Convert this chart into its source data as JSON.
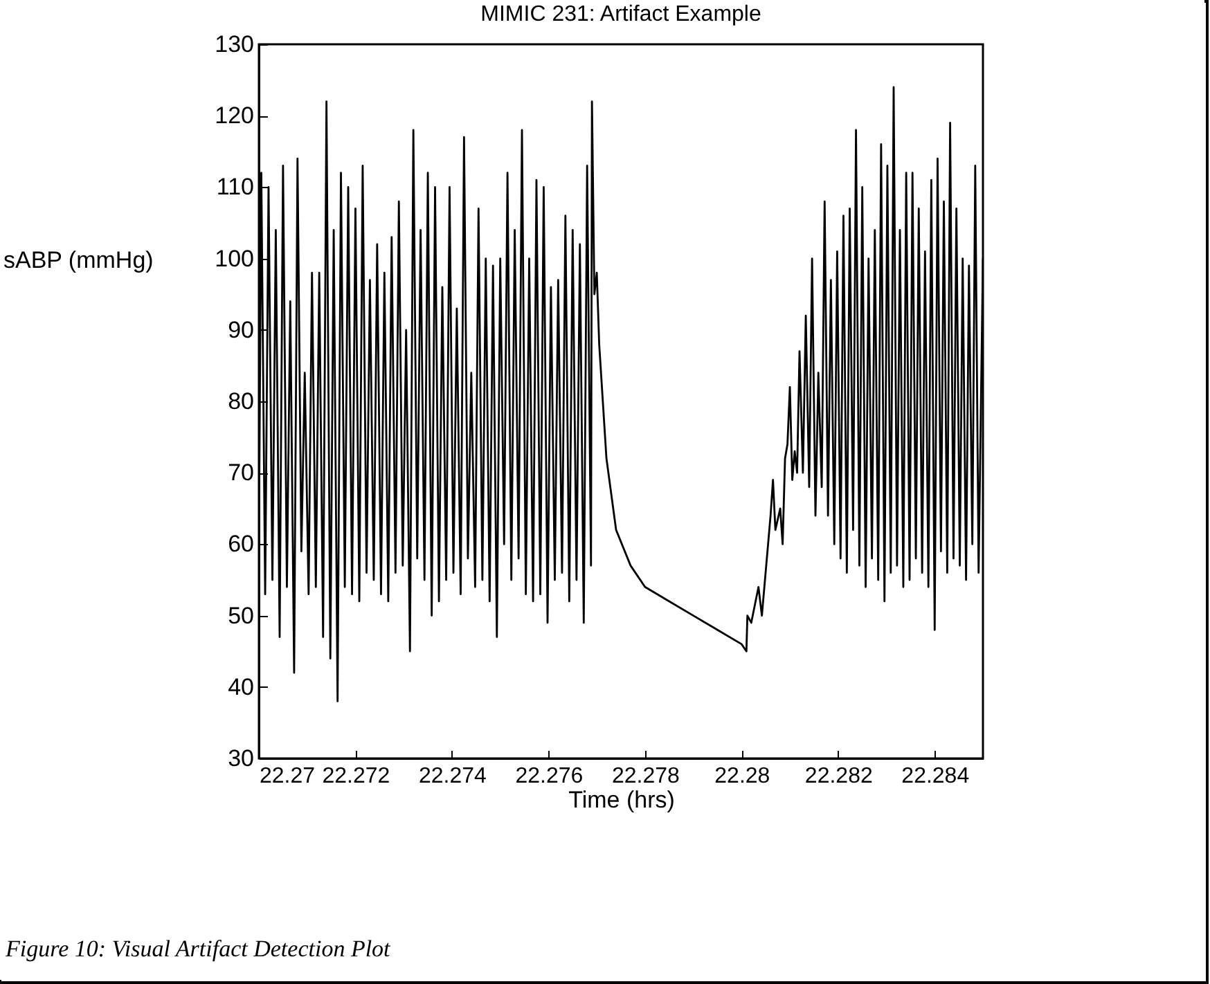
{
  "chart_data": {
    "type": "line",
    "title": "MIMIC 231: Artifact Example",
    "xlabel": "Time (hrs)",
    "ylabel": "sABP (mmHg)",
    "annotations": [
      "Figure 10:  Visual Artifact Detection Plot"
    ],
    "xlim": [
      22.27,
      22.285
    ],
    "xticks": [
      22.27,
      22.272,
      22.274,
      22.276,
      22.278,
      22.28,
      22.282,
      22.284
    ],
    "ylim": [
      30,
      130
    ],
    "yticks": [
      30,
      40,
      50,
      60,
      70,
      80,
      90,
      100,
      110,
      120,
      130
    ],
    "grid": false,
    "series": [
      {
        "color": "#000000",
        "x": [
          22.27,
          22.27005,
          22.27013,
          22.2702,
          22.27028,
          22.27035,
          22.27043,
          22.2705,
          22.27058,
          22.27065,
          22.27073,
          22.2708,
          22.27088,
          22.27095,
          22.27103,
          22.2711,
          22.27118,
          22.27125,
          22.27133,
          22.2714,
          22.27148,
          22.27155,
          22.27163,
          22.2717,
          22.27178,
          22.27185,
          22.27193,
          22.272,
          22.27208,
          22.27215,
          22.27223,
          22.2723,
          22.27238,
          22.27245,
          22.27253,
          22.2726,
          22.27268,
          22.27275,
          22.27283,
          22.2729,
          22.27298,
          22.27305,
          22.27313,
          22.2732,
          22.27328,
          22.27335,
          22.27343,
          22.2735,
          22.27358,
          22.27365,
          22.27373,
          22.2738,
          22.27388,
          22.27395,
          22.27403,
          22.2741,
          22.27418,
          22.27425,
          22.27433,
          22.2744,
          22.27448,
          22.27455,
          22.27463,
          22.2747,
          22.27478,
          22.27485,
          22.27493,
          22.275,
          22.27508,
          22.27515,
          22.27523,
          22.2753,
          22.27538,
          22.27545,
          22.27553,
          22.2756,
          22.27568,
          22.27575,
          22.27583,
          22.2759,
          22.27598,
          22.27605,
          22.27613,
          22.2762,
          22.27628,
          22.27635,
          22.27643,
          22.2765,
          22.27658,
          22.27665,
          22.27673,
          22.2768,
          22.27688,
          22.2769,
          22.27695,
          22.277,
          22.27705,
          22.2772,
          22.2774,
          22.2777,
          22.278,
          22.2785,
          22.279,
          22.2795,
          22.28,
          22.2801,
          22.28012,
          22.2802,
          22.28035,
          22.28042,
          22.2806,
          22.28065,
          22.2807,
          22.2808,
          22.28085,
          22.2809,
          22.28095,
          22.281,
          22.28105,
          22.2811,
          22.28115,
          22.2812,
          22.28127,
          22.28133,
          22.2814,
          22.28146,
          22.28153,
          22.28159,
          22.28166,
          22.28172,
          22.28179,
          22.28185,
          22.28192,
          22.28198,
          22.28205,
          22.28211,
          22.28218,
          22.28224,
          22.28231,
          22.28237,
          22.28244,
          22.2825,
          22.28257,
          22.28263,
          22.2827,
          22.28276,
          22.28283,
          22.28289,
          22.28296,
          22.28302,
          22.28309,
          22.28315,
          22.28322,
          22.28328,
          22.28335,
          22.28341,
          22.28348,
          22.28354,
          22.28361,
          22.28367,
          22.28374,
          22.2838,
          22.28387,
          22.28393,
          22.284,
          22.28406,
          22.28413,
          22.28419,
          22.28426,
          22.28432,
          22.28439,
          22.28445,
          22.28452,
          22.28458,
          22.28465,
          22.28471,
          22.28478,
          22.28484,
          22.28491,
          22.285
        ],
        "values": [
          60,
          112,
          53,
          110,
          55,
          104,
          47,
          113,
          54,
          94,
          42,
          114,
          59,
          84,
          53,
          98,
          54,
          98,
          47,
          122,
          44,
          104,
          38,
          112,
          54,
          110,
          53,
          107,
          52,
          113,
          56,
          97,
          55,
          102,
          53,
          98,
          52,
          103,
          56,
          108,
          57,
          90,
          45,
          118,
          58,
          104,
          55,
          112,
          50,
          110,
          52,
          96,
          55,
          110,
          56,
          93,
          53,
          117,
          58,
          84,
          54,
          107,
          55,
          100,
          52,
          99,
          47,
          100,
          60,
          112,
          55,
          104,
          58,
          118,
          53,
          100,
          52,
          111,
          53,
          110,
          49,
          96,
          55,
          97,
          56,
          106,
          52,
          104,
          55,
          102,
          49,
          113,
          57,
          122,
          95,
          98,
          88,
          72,
          62,
          57,
          54,
          52,
          50,
          48,
          46,
          45,
          50,
          49,
          54,
          50,
          64,
          69,
          62,
          65,
          60,
          72,
          74,
          82,
          69,
          73,
          70,
          87,
          70,
          92,
          68,
          100,
          64,
          84,
          68,
          108,
          64,
          97,
          60,
          101,
          58,
          106,
          56,
          107,
          62,
          118,
          57,
          110,
          54,
          100,
          58,
          104,
          55,
          116,
          52,
          113,
          56,
          124,
          57,
          104,
          54,
          112,
          55,
          112,
          58,
          107,
          56,
          101,
          54,
          111,
          48,
          114,
          59,
          108,
          56,
          119,
          58,
          107,
          57,
          100,
          55,
          99,
          60,
          113,
          56,
          100
        ]
      }
    ]
  }
}
